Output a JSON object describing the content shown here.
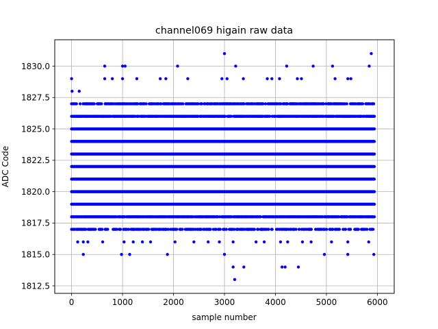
{
  "chart_data": {
    "type": "scatter",
    "title": "channel069 higain raw data",
    "xlabel": "sample number",
    "ylabel": "ADC Code",
    "xlim": [
      -330,
      6330
    ],
    "ylim": [
      1811.9,
      1832.1
    ],
    "xticks": [
      0,
      1000,
      2000,
      3000,
      4000,
      5000,
      6000
    ],
    "xtick_labels": [
      "0",
      "1000",
      "2000",
      "3000",
      "4000",
      "5000",
      "6000"
    ],
    "yticks": [
      1812.5,
      1815.0,
      1817.5,
      1820.0,
      1822.5,
      1825.0,
      1827.5,
      1830.0
    ],
    "ytick_labels": [
      "1812.5",
      "1815.0",
      "1817.5",
      "1820.0",
      "1822.5",
      "1825.0",
      "1827.5",
      "1830.0"
    ],
    "grid": true,
    "marker_color": "#0000ff",
    "series": [
      {
        "x_range": [
          0,
          5940
        ],
        "dense_levels": [
          1817,
          1818,
          1819,
          1820,
          1821,
          1822,
          1823,
          1824,
          1825,
          1826,
          1827
        ],
        "outliers": [
          [
            0,
            1829
          ],
          [
            10,
            1828
          ],
          [
            150,
            1828
          ],
          [
            650,
            1830
          ],
          [
            1000,
            1830
          ],
          [
            1050,
            1830
          ],
          [
            2080,
            1830
          ],
          [
            3000,
            1831
          ],
          [
            3220,
            1830
          ],
          [
            4220,
            1830
          ],
          [
            4740,
            1830
          ],
          [
            5120,
            1830
          ],
          [
            5840,
            1830
          ],
          [
            5880,
            1831
          ],
          [
            650,
            1829
          ],
          [
            800,
            1829
          ],
          [
            1000,
            1829
          ],
          [
            1280,
            1829
          ],
          [
            1740,
            1829
          ],
          [
            1850,
            1829
          ],
          [
            2280,
            1829
          ],
          [
            2950,
            1829
          ],
          [
            3050,
            1829
          ],
          [
            3370,
            1829
          ],
          [
            3840,
            1829
          ],
          [
            3930,
            1829
          ],
          [
            4080,
            1829
          ],
          [
            4430,
            1829
          ],
          [
            4510,
            1829
          ],
          [
            5170,
            1829
          ],
          [
            5420,
            1829
          ],
          [
            5480,
            1829
          ],
          [
            120,
            1816
          ],
          [
            230,
            1816
          ],
          [
            320,
            1816
          ],
          [
            610,
            1816
          ],
          [
            1030,
            1816
          ],
          [
            1210,
            1816
          ],
          [
            1390,
            1816
          ],
          [
            1550,
            1816
          ],
          [
            2030,
            1816
          ],
          [
            2400,
            1816
          ],
          [
            2680,
            1816
          ],
          [
            2900,
            1816
          ],
          [
            3170,
            1816
          ],
          [
            3620,
            1816
          ],
          [
            3780,
            1816
          ],
          [
            4100,
            1816
          ],
          [
            4240,
            1816
          ],
          [
            4530,
            1816
          ],
          [
            4700,
            1816
          ],
          [
            5100,
            1816
          ],
          [
            5420,
            1816
          ],
          [
            5830,
            1816
          ],
          [
            230,
            1815
          ],
          [
            980,
            1815
          ],
          [
            1140,
            1815
          ],
          [
            1880,
            1815
          ],
          [
            3000,
            1815
          ],
          [
            4960,
            1815
          ],
          [
            5420,
            1815
          ],
          [
            5930,
            1815
          ],
          [
            3170,
            1814
          ],
          [
            3380,
            1814
          ],
          [
            4130,
            1814
          ],
          [
            4190,
            1814
          ],
          [
            4450,
            1814
          ],
          [
            3200,
            1813
          ]
        ]
      }
    ]
  }
}
